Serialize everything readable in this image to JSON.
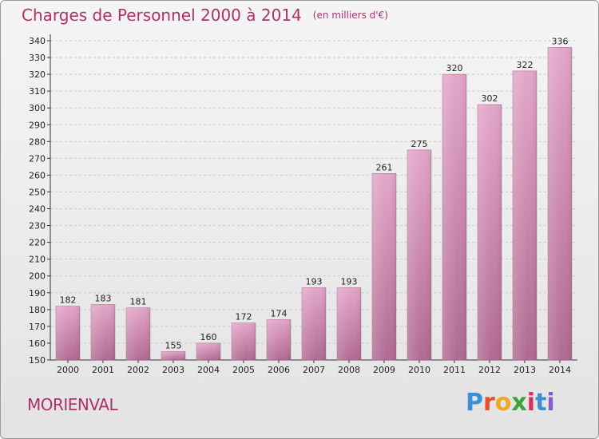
{
  "header": {
    "title": "Charges de Personnel 2000 à 2014",
    "subtitle": "(en milliers d'€)"
  },
  "footer": {
    "commune": "MORIENVAL",
    "logo_letters": [
      "P",
      "r",
      "o",
      "x",
      "i",
      "t",
      "i"
    ],
    "logo_colors": [
      "#3a8fd6",
      "#e8522b",
      "#f2a622",
      "#3aa33a",
      "#d8325a",
      "#3a8fd6",
      "#8a5bd0"
    ]
  },
  "colors": {
    "bar_top": "#e3a5c9",
    "bar_bottom": "#b06a92",
    "title": "#b0306a"
  },
  "chart_data": {
    "type": "bar",
    "title": "Charges de Personnel 2000 à 2014",
    "subtitle": "(en milliers d'€)",
    "categories": [
      "2000",
      "2001",
      "2002",
      "2003",
      "2004",
      "2005",
      "2006",
      "2007",
      "2008",
      "2009",
      "2010",
      "2011",
      "2012",
      "2013",
      "2014"
    ],
    "values": [
      182,
      183,
      181,
      155,
      160,
      172,
      174,
      193,
      193,
      261,
      275,
      320,
      302,
      322,
      336
    ],
    "ylim": [
      150,
      340
    ],
    "yticks": [
      150,
      160,
      170,
      180,
      190,
      200,
      210,
      220,
      230,
      240,
      250,
      260,
      270,
      280,
      290,
      300,
      310,
      320,
      330,
      340
    ],
    "grid": true
  }
}
